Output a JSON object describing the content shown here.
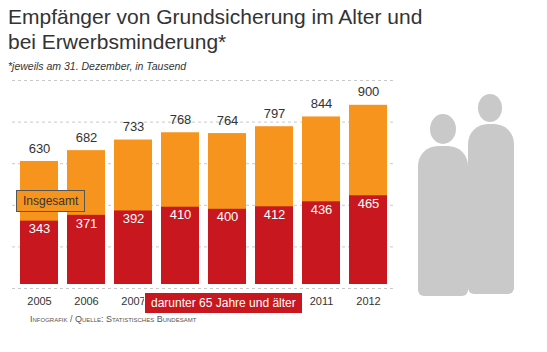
{
  "chart_data": {
    "type": "bar",
    "title": "Empfänger von Grundsicherung im Alter und bei Erwerbsminderung*",
    "subtitle": "*jeweils am 31. Dezember, in Tausend",
    "caption": "Infografik / Quelle: Statistisches Bundesamt",
    "categories": [
      "2005",
      "2006",
      "2007",
      "2008",
      "2009",
      "2010",
      "2011",
      "2012"
    ],
    "series": [
      {
        "name": "Insgesamt",
        "color": "#f7941d",
        "values": [
          630,
          682,
          733,
          768,
          764,
          797,
          844,
          900
        ]
      },
      {
        "name": "darunter 65 Jahre und älter",
        "color": "#c8171e",
        "values": [
          343,
          371,
          392,
          410,
          400,
          412,
          436,
          465
        ]
      }
    ],
    "stacked": false,
    "data_labels": true,
    "tick_labels": "x",
    "ylim": [
      0,
      1000
    ],
    "yticks": [
      0,
      200,
      400,
      600,
      800,
      1000
    ],
    "grid": true
  }
}
